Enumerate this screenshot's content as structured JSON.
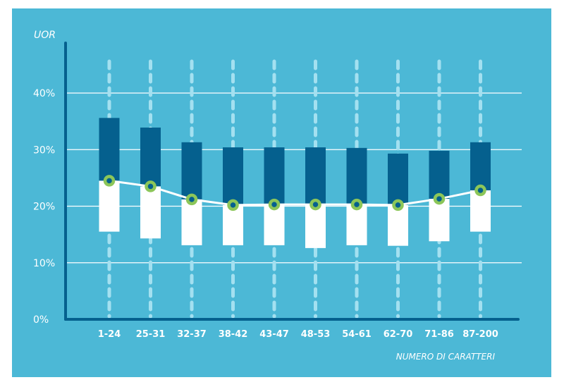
{
  "chart_data": {
    "type": "bar",
    "subtype": "floating-range-with-median-line",
    "title": "",
    "xlabel": "NUMERO DI CARATTERI",
    "ylabel": "UOR",
    "ylim": [
      0,
      40
    ],
    "yticks": [
      0,
      10,
      20,
      30,
      40
    ],
    "ytick_labels": [
      "0%",
      "10%",
      "20%",
      "30%",
      "40%"
    ],
    "grid": true,
    "categories": [
      "1-24",
      "25-31",
      "32-37",
      "38-42",
      "43-47",
      "48-53",
      "54-61",
      "62-70",
      "71-86",
      "87-200"
    ],
    "series": [
      {
        "name": "low",
        "values": [
          15.5,
          14.3,
          13.1,
          13.1,
          13.1,
          12.6,
          13.1,
          13.0,
          13.8,
          15.5
        ]
      },
      {
        "name": "median",
        "values": [
          24.5,
          23.5,
          21.2,
          20.2,
          20.3,
          20.3,
          20.3,
          20.2,
          21.3,
          22.8
        ]
      },
      {
        "name": "high",
        "values": [
          35.6,
          33.9,
          31.3,
          30.4,
          30.4,
          30.4,
          30.3,
          29.3,
          29.8,
          31.3
        ]
      }
    ],
    "colors": {
      "background": "#4cb8d6",
      "upper_bar": "#05608e",
      "lower_bar": "#ffffff",
      "axis": "#05608e",
      "dashed_guides": "#a3e0f0",
      "marker_ring": "#8cc659",
      "marker_center": "#05608e",
      "median_line": "#ffffff",
      "gridline": "#ffffff"
    }
  }
}
